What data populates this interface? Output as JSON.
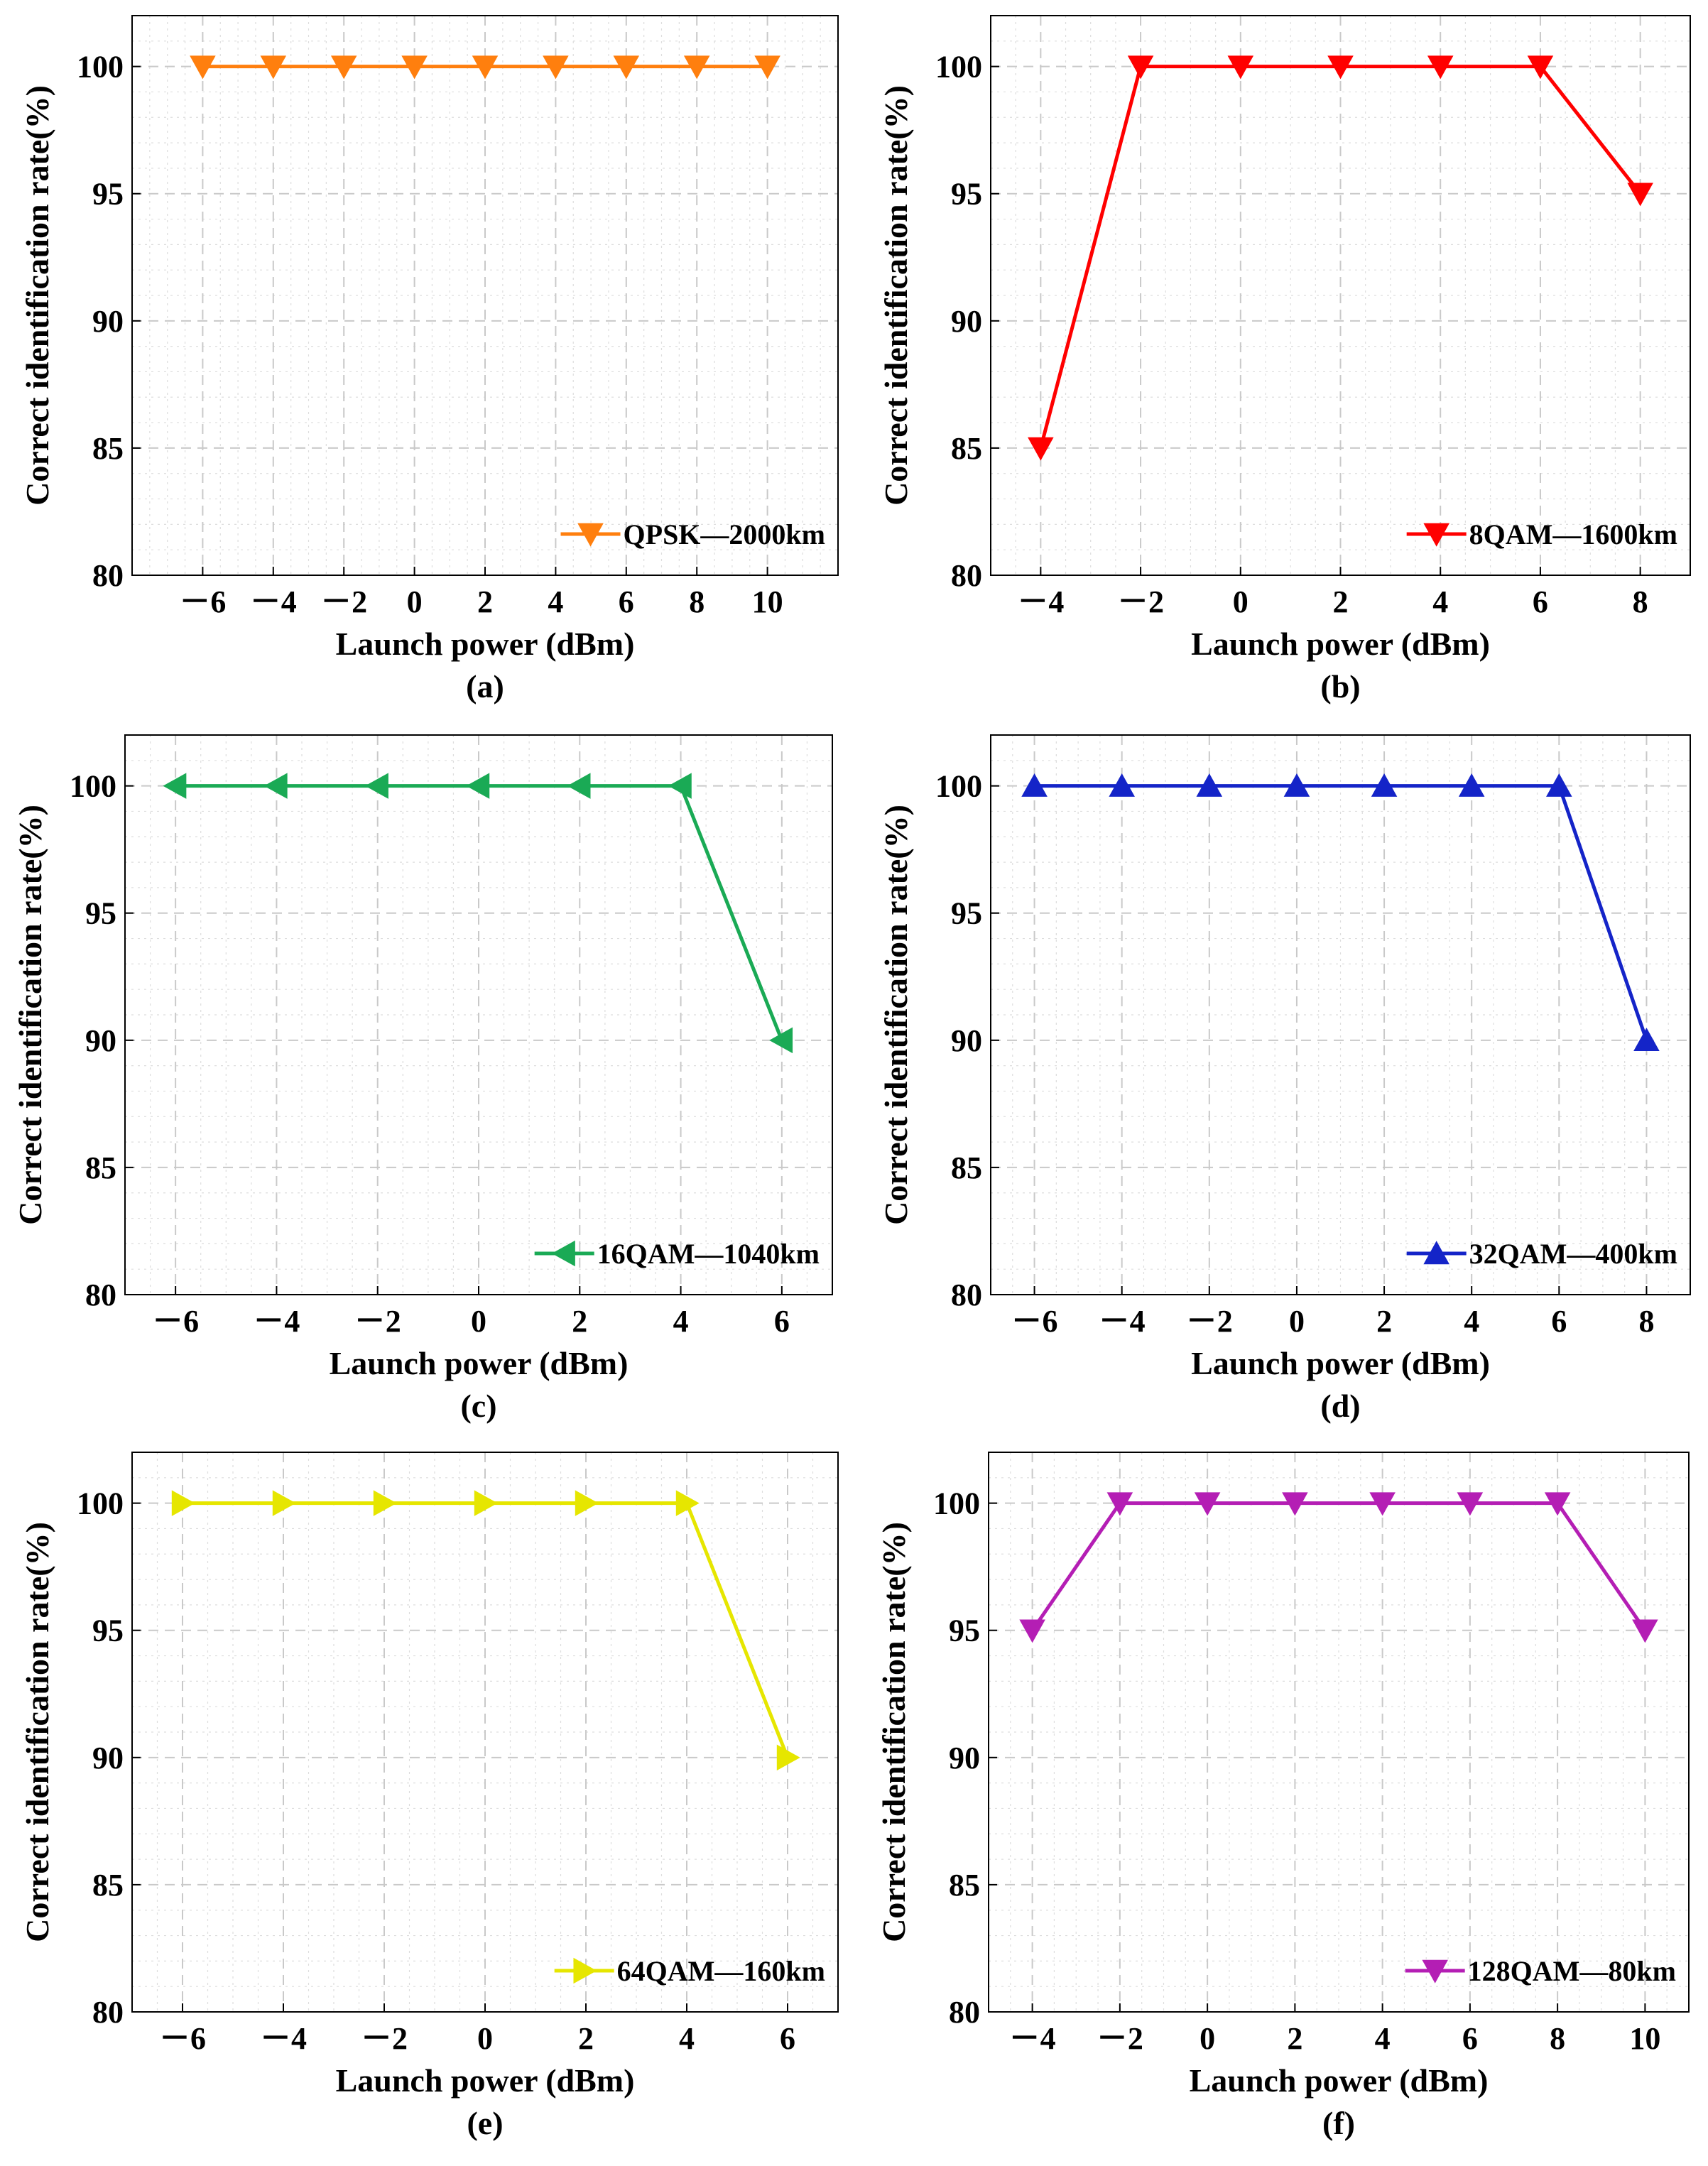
{
  "figure": {
    "panels_note": "Six panels of correct identification rate versus launch power"
  },
  "chart_data": [
    {
      "type": "line",
      "panel_label": "(a)",
      "xlabel": "Launch power (dBm)",
      "ylabel": "Correct identification rate(%)",
      "xlim": [
        -8,
        12
      ],
      "ylim": [
        80,
        102
      ],
      "xticks": [
        -6,
        -4,
        -2,
        0,
        2,
        4,
        6,
        8,
        10
      ],
      "xtick_labels": [
        "－6",
        "－4",
        "－2",
        "0",
        "2",
        "4",
        "6",
        "8",
        "10"
      ],
      "yticks": [
        80,
        85,
        90,
        95,
        100
      ],
      "ytick_labels": [
        "80",
        "85",
        "90",
        "95",
        "100"
      ],
      "legend_position": "bottom-right",
      "series": [
        {
          "name": "QPSK—2000km",
          "color": "#ff7f0e",
          "marker": "triangle-down",
          "x": [
            -6,
            -4,
            -2,
            0,
            2,
            4,
            6,
            8,
            10
          ],
          "values": [
            100,
            100,
            100,
            100,
            100,
            100,
            100,
            100,
            100
          ]
        }
      ]
    },
    {
      "type": "line",
      "panel_label": "(b)",
      "xlabel": "Launch power (dBm)",
      "ylabel": "Correct identification rate(%)",
      "xlim": [
        -5,
        9
      ],
      "ylim": [
        80,
        102
      ],
      "xticks": [
        -4,
        -2,
        0,
        2,
        4,
        6,
        8
      ],
      "xtick_labels": [
        "－4",
        "－2",
        "0",
        "2",
        "4",
        "6",
        "8"
      ],
      "yticks": [
        80,
        85,
        90,
        95,
        100
      ],
      "ytick_labels": [
        "80",
        "85",
        "90",
        "95",
        "100"
      ],
      "legend_position": "bottom-right",
      "series": [
        {
          "name": "8QAM—1600km",
          "color": "#ff0000",
          "marker": "triangle-down",
          "x": [
            -4,
            -2,
            0,
            2,
            4,
            6,
            8
          ],
          "values": [
            85,
            100,
            100,
            100,
            100,
            100,
            95
          ]
        }
      ]
    },
    {
      "type": "line",
      "panel_label": "(c)",
      "xlabel": "Launch power (dBm)",
      "ylabel": "Correct identification rate(%)",
      "xlim": [
        -7,
        7
      ],
      "ylim": [
        80,
        102
      ],
      "xticks": [
        -6,
        -4,
        -2,
        0,
        2,
        4,
        6
      ],
      "xtick_labels": [
        "－6",
        "－4",
        "－2",
        "0",
        "2",
        "4",
        "6"
      ],
      "yticks": [
        80,
        85,
        90,
        95,
        100
      ],
      "ytick_labels": [
        "80",
        "85",
        "90",
        "95",
        "100"
      ],
      "legend_position": "bottom-right",
      "series": [
        {
          "name": "16QAM—1040km",
          "color": "#1aaa55",
          "marker": "triangle-left",
          "x": [
            -6,
            -4,
            -2,
            0,
            2,
            4,
            6
          ],
          "values": [
            100,
            100,
            100,
            100,
            100,
            100,
            90
          ]
        }
      ]
    },
    {
      "type": "line",
      "panel_label": "(d)",
      "xlabel": "Launch power (dBm)",
      "ylabel": "Correct identification rate(%)",
      "xlim": [
        -7,
        9
      ],
      "ylim": [
        80,
        102
      ],
      "xticks": [
        -6,
        -4,
        -2,
        0,
        2,
        4,
        6,
        8
      ],
      "xtick_labels": [
        "－6",
        "－4",
        "－2",
        "0",
        "2",
        "4",
        "6",
        "8"
      ],
      "yticks": [
        80,
        85,
        90,
        95,
        100
      ],
      "ytick_labels": [
        "80",
        "85",
        "90",
        "95",
        "100"
      ],
      "legend_position": "bottom-right",
      "series": [
        {
          "name": "32QAM—400km",
          "color": "#1424c8",
          "marker": "triangle-up",
          "x": [
            -6,
            -4,
            -2,
            0,
            2,
            4,
            6,
            8
          ],
          "values": [
            100,
            100,
            100,
            100,
            100,
            100,
            100,
            90
          ]
        }
      ]
    },
    {
      "type": "line",
      "panel_label": "(e)",
      "xlabel": "Launch power (dBm)",
      "ylabel": "Correct identification rate(%)",
      "xlim": [
        -7,
        7
      ],
      "ylim": [
        80,
        102
      ],
      "xticks": [
        -6,
        -4,
        -2,
        0,
        2,
        4,
        6
      ],
      "xtick_labels": [
        "－6",
        "－4",
        "－2",
        "0",
        "2",
        "4",
        "6"
      ],
      "yticks": [
        80,
        85,
        90,
        95,
        100
      ],
      "ytick_labels": [
        "80",
        "85",
        "90",
        "95",
        "100"
      ],
      "legend_position": "bottom-right",
      "series": [
        {
          "name": "64QAM—160km",
          "color": "#e6e600",
          "marker": "triangle-right",
          "x": [
            -6,
            -4,
            -2,
            0,
            2,
            4,
            6
          ],
          "values": [
            100,
            100,
            100,
            100,
            100,
            100,
            90
          ]
        }
      ]
    },
    {
      "type": "line",
      "panel_label": "(f)",
      "xlabel": "Launch power (dBm)",
      "ylabel": "Correct identification rate(%)",
      "xlim": [
        -5,
        11
      ],
      "ylim": [
        80,
        102
      ],
      "xticks": [
        -4,
        -2,
        0,
        2,
        4,
        6,
        8,
        10
      ],
      "xtick_labels": [
        "－4",
        "－2",
        "0",
        "2",
        "4",
        "6",
        "8",
        "10"
      ],
      "yticks": [
        80,
        85,
        90,
        95,
        100
      ],
      "ytick_labels": [
        "80",
        "85",
        "90",
        "95",
        "100"
      ],
      "legend_position": "bottom-right",
      "series": [
        {
          "name": "128QAM—80km",
          "color": "#b41eb4",
          "marker": "triangle-down",
          "x": [
            -4,
            -2,
            0,
            2,
            4,
            6,
            8,
            10
          ],
          "values": [
            95,
            100,
            100,
            100,
            100,
            100,
            100,
            95
          ]
        }
      ]
    }
  ]
}
